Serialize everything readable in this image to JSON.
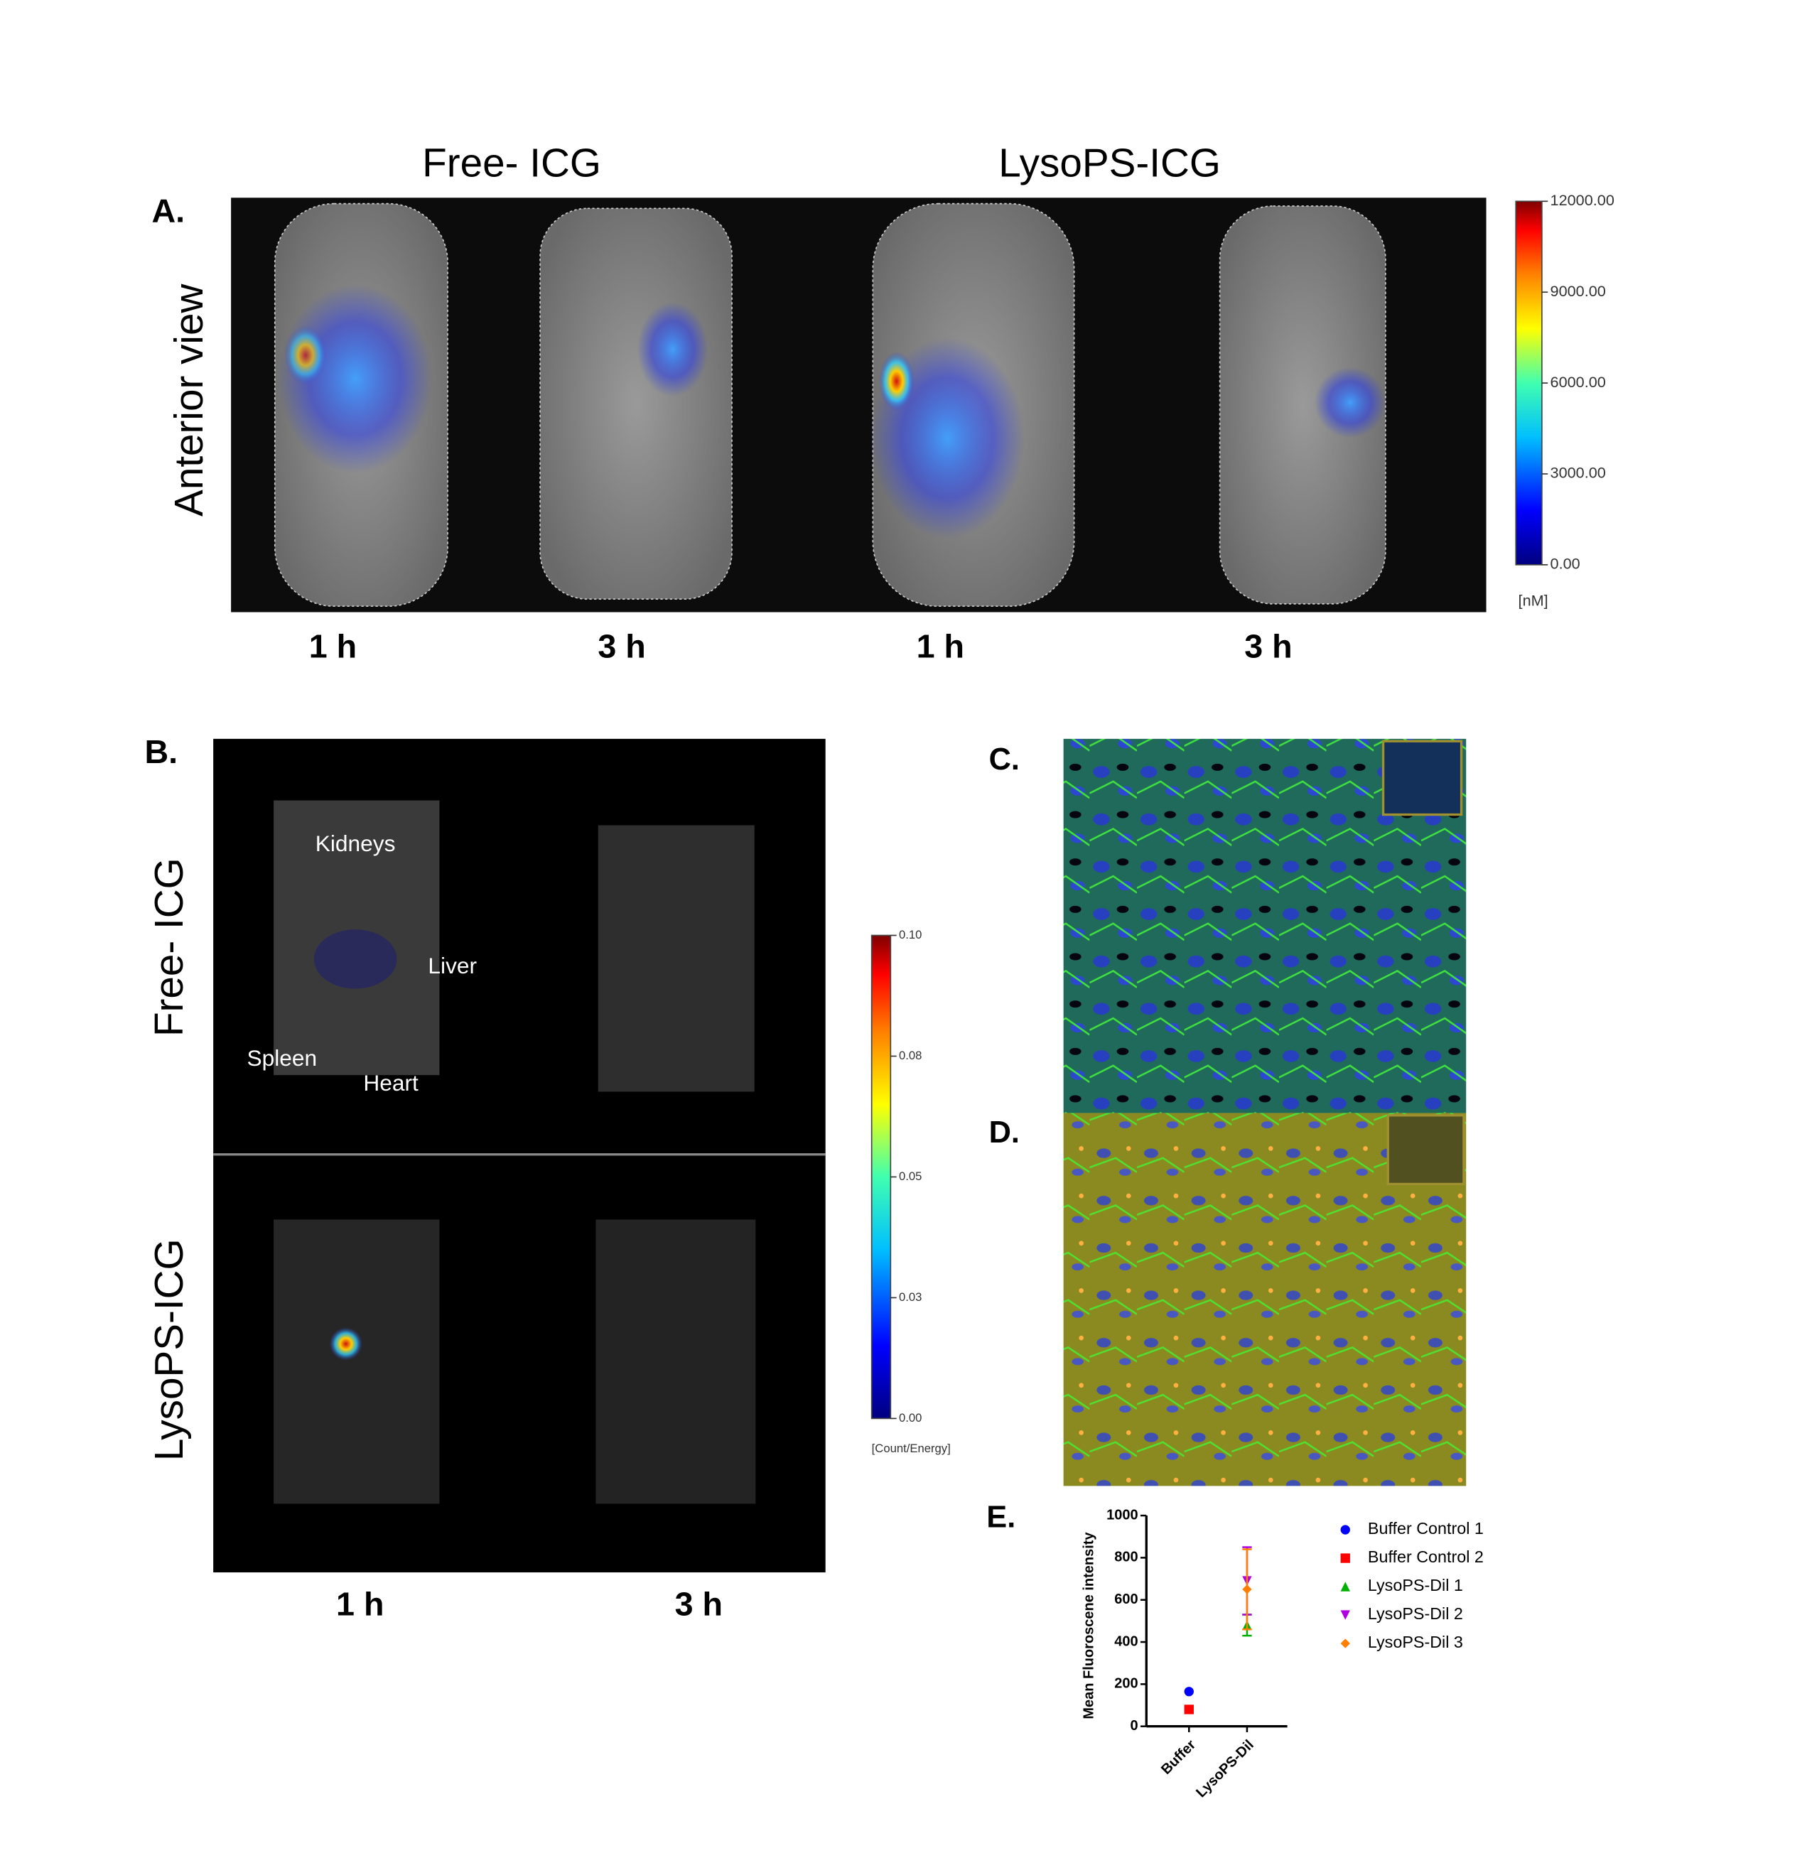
{
  "panel_a": {
    "label": "A.",
    "row_label": "Anterior view",
    "groups": [
      "Free- ICG",
      "LysoPS-ICG"
    ],
    "times": [
      "1 h",
      "3 h",
      "1 h",
      "3 h"
    ],
    "colorbar": {
      "ticks": [
        {
          "value": 12000,
          "label": "12000.00"
        },
        {
          "value": 9000,
          "label": "9000.00"
        },
        {
          "value": 6000,
          "label": "6000.00"
        },
        {
          "value": 3000,
          "label": "3000.00"
        },
        {
          "value": 0,
          "label": "0.00"
        }
      ],
      "unit": "[nM]"
    }
  },
  "panel_b": {
    "label": "B.",
    "rows": [
      "Free- ICG",
      "LysoPS-ICG"
    ],
    "organs": [
      "Kidneys",
      "Liver",
      "Spleen",
      "Heart"
    ],
    "times": [
      "1 h",
      "3 h"
    ],
    "colorbar": {
      "ticks": [
        {
          "value": 0.1,
          "label": "0.10"
        },
        {
          "value": 0.075,
          "label": "0.08"
        },
        {
          "value": 0.05,
          "label": "0.05"
        },
        {
          "value": 0.025,
          "label": "0.03"
        },
        {
          "value": 0,
          "label": "0.00"
        }
      ],
      "unit": "[Count/Energy]"
    }
  },
  "panel_c": {
    "label": "C."
  },
  "panel_d": {
    "label": "D."
  },
  "panel_e": {
    "label": "E.",
    "chart_data": {
      "type": "scatter",
      "y_label": "Mean Fluoroscene intensity",
      "categories": [
        "Buffer",
        "LysoPS-Dil"
      ],
      "ylim": [
        0,
        1000
      ],
      "yticks": [
        0,
        200,
        400,
        600,
        800,
        1000
      ],
      "series": [
        {
          "name": "Buffer Control 1",
          "color": "#0000ff",
          "marker": "circle",
          "values": [
            165,
            null
          ]
        },
        {
          "name": "Buffer Control 2",
          "color": "#ff0000",
          "marker": "square",
          "values": [
            80,
            null
          ]
        },
        {
          "name": "LysoPS-Dil 1",
          "color": "#00b000",
          "marker": "triangle-up",
          "values": [
            null,
            480
          ],
          "errors": [
            null,
            50
          ]
        },
        {
          "name": "LysoPS-Dil 2",
          "color": "#b000e0",
          "marker": "triangle-down",
          "values": [
            null,
            690
          ],
          "errors": [
            null,
            160
          ]
        },
        {
          "name": "LysoPS-Dil 3",
          "color": "#ff8000",
          "marker": "diamond",
          "values": [
            null,
            650
          ],
          "errors": [
            null,
            190
          ]
        }
      ]
    }
  }
}
